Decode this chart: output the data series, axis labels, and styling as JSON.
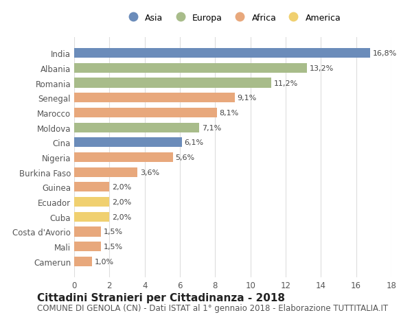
{
  "categories": [
    "India",
    "Albania",
    "Romania",
    "Senegal",
    "Marocco",
    "Moldova",
    "Cina",
    "Nigeria",
    "Burkina Faso",
    "Guinea",
    "Ecuador",
    "Cuba",
    "Costa d'Avorio",
    "Mali",
    "Camerun"
  ],
  "values": [
    16.8,
    13.2,
    11.2,
    9.1,
    8.1,
    7.1,
    6.1,
    5.6,
    3.6,
    2.0,
    2.0,
    2.0,
    1.5,
    1.5,
    1.0
  ],
  "labels": [
    "16,8%",
    "13,2%",
    "11,2%",
    "9,1%",
    "8,1%",
    "7,1%",
    "6,1%",
    "5,6%",
    "3,6%",
    "2,0%",
    "2,0%",
    "2,0%",
    "1,5%",
    "1,5%",
    "1,0%"
  ],
  "continents": [
    "Asia",
    "Europa",
    "Europa",
    "Africa",
    "Africa",
    "Europa",
    "Asia",
    "Africa",
    "Africa",
    "Africa",
    "America",
    "America",
    "Africa",
    "Africa",
    "Africa"
  ],
  "continent_colors": {
    "Asia": "#6b8cba",
    "Europa": "#a8bc8a",
    "Africa": "#e8a87c",
    "America": "#f0d070"
  },
  "legend_order": [
    "Asia",
    "Europa",
    "Africa",
    "America"
  ],
  "title": "Cittadini Stranieri per Cittadinanza - 2018",
  "subtitle": "COMUNE DI GENOLA (CN) - Dati ISTAT al 1° gennaio 2018 - Elaborazione TUTTITALIA.IT",
  "xlim": [
    0,
    18
  ],
  "xticks": [
    0,
    2,
    4,
    6,
    8,
    10,
    12,
    14,
    16,
    18
  ],
  "background_color": "#ffffff",
  "grid_color": "#dddddd",
  "bar_height": 0.65,
  "title_fontsize": 11,
  "subtitle_fontsize": 8.5,
  "label_fontsize": 8,
  "tick_fontsize": 8.5,
  "legend_fontsize": 9
}
